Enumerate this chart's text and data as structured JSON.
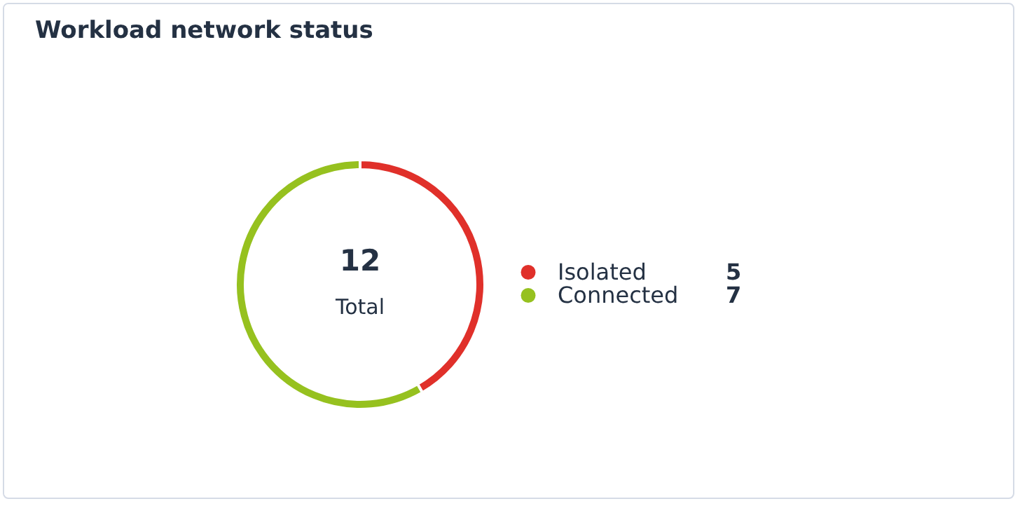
{
  "chart_data": {
    "type": "donut",
    "title": "Workload network status",
    "categories": [
      "Isolated",
      "Connected"
    ],
    "values": [
      5,
      7
    ],
    "colors": [
      "#e0302a",
      "#96c11f"
    ],
    "annotations": [
      "12",
      "Total"
    ],
    "legend": "right",
    "data_labels": true
  }
}
